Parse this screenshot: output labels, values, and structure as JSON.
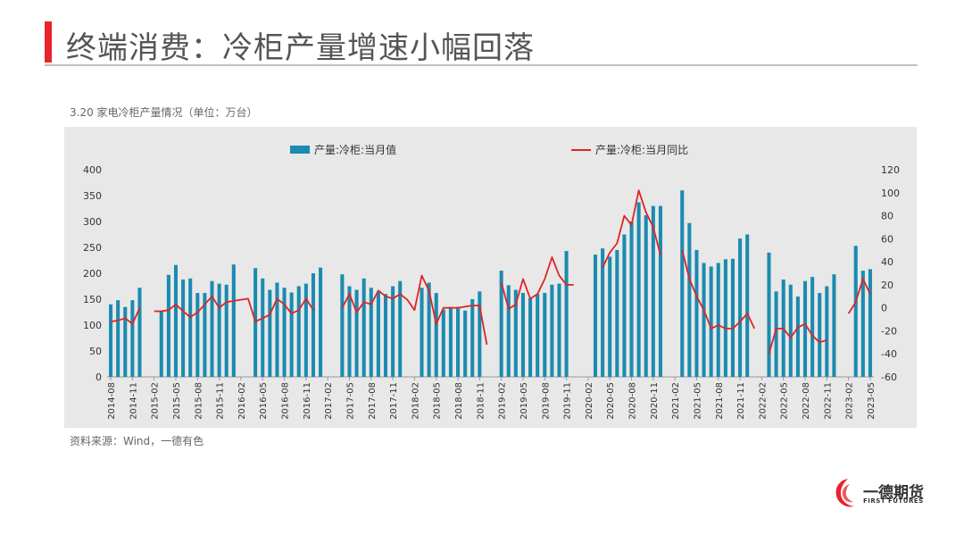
{
  "page": {
    "title": "终端消费：冷柜产量增速小幅回落",
    "chart_caption": "3.20 家电冷柜产量情况（单位：万台）",
    "source": "资料来源：Wind，一德有色",
    "logo_text": "一德期货",
    "logo_sub": "FIRST FUTURES"
  },
  "colors": {
    "accent": "#e8232a",
    "bar": "#1b8bb0",
    "line": "#e02424",
    "panel": "#e8e8e8"
  },
  "chart_data": {
    "type": "bar",
    "legend": [
      "产量:冷柜:当月值",
      "产量:冷柜:当月同比"
    ],
    "left_axis": {
      "min": 0,
      "max": 400,
      "ticks": [
        0,
        50,
        100,
        150,
        200,
        250,
        300,
        350,
        400
      ]
    },
    "right_axis": {
      "min": -60,
      "max": 120,
      "ticks": [
        -60,
        -40,
        -20,
        0,
        20,
        40,
        60,
        80,
        100,
        120
      ]
    },
    "x_tick_labels": [
      "2014-08",
      "2014-11",
      "2015-02",
      "2015-05",
      "2015-08",
      "2015-11",
      "2016-02",
      "2016-05",
      "2016-08",
      "2016-11",
      "2017-02",
      "2017-05",
      "2017-08",
      "2017-11",
      "2018-02",
      "2018-05",
      "2018-08",
      "2018-11",
      "2019-02",
      "2019-05",
      "2019-08",
      "2019-11",
      "2020-02",
      "2020-05",
      "2020-08",
      "2020-11",
      "2021-02",
      "2021-05",
      "2021-08",
      "2021-11",
      "2022-02",
      "2022-05",
      "2022-08",
      "2022-11",
      "2023-02",
      "2023-05"
    ],
    "months": [
      "2014-08",
      "2014-09",
      "2014-10",
      "2014-11",
      "2014-12",
      "2015-01",
      "2015-02",
      "2015-03",
      "2015-04",
      "2015-05",
      "2015-06",
      "2015-07",
      "2015-08",
      "2015-09",
      "2015-10",
      "2015-11",
      "2015-12",
      "2016-01",
      "2016-02",
      "2016-03",
      "2016-04",
      "2016-05",
      "2016-06",
      "2016-07",
      "2016-08",
      "2016-09",
      "2016-10",
      "2016-11",
      "2016-12",
      "2017-01",
      "2017-02",
      "2017-03",
      "2017-04",
      "2017-05",
      "2017-06",
      "2017-07",
      "2017-08",
      "2017-09",
      "2017-10",
      "2017-11",
      "2017-12",
      "2018-01",
      "2018-02",
      "2018-03",
      "2018-04",
      "2018-05",
      "2018-06",
      "2018-07",
      "2018-08",
      "2018-09",
      "2018-10",
      "2018-11",
      "2018-12",
      "2019-01",
      "2019-02",
      "2019-03",
      "2019-04",
      "2019-05",
      "2019-06",
      "2019-07",
      "2019-08",
      "2019-09",
      "2019-10",
      "2019-11",
      "2019-12",
      "2020-01",
      "2020-02",
      "2020-03",
      "2020-04",
      "2020-05",
      "2020-06",
      "2020-07",
      "2020-08",
      "2020-09",
      "2020-10",
      "2020-11",
      "2020-12",
      "2021-01",
      "2021-02",
      "2021-03",
      "2021-04",
      "2021-05",
      "2021-06",
      "2021-07",
      "2021-08",
      "2021-09",
      "2021-10",
      "2021-11",
      "2021-12",
      "2022-01",
      "2022-02",
      "2022-03",
      "2022-04",
      "2022-05",
      "2022-06",
      "2022-07",
      "2022-08",
      "2022-09",
      "2022-10",
      "2022-11",
      "2022-12",
      "2023-01",
      "2023-02",
      "2023-03",
      "2023-04",
      "2023-05"
    ],
    "series": [
      {
        "name": "产量:冷柜:当月值",
        "type": "bar",
        "axis": "left",
        "values": [
          140,
          148,
          135,
          148,
          172,
          null,
          null,
          128,
          197,
          216,
          188,
          190,
          162,
          162,
          185,
          180,
          178,
          217,
          null,
          null,
          210,
          190,
          168,
          182,
          172,
          163,
          175,
          180,
          200,
          211,
          null,
          null,
          198,
          175,
          168,
          190,
          172,
          165,
          160,
          175,
          185,
          null,
          null,
          172,
          182,
          162,
          130,
          135,
          135,
          128,
          150,
          165,
          null,
          null,
          205,
          177,
          168,
          162,
          152,
          160,
          162,
          178,
          180,
          243,
          null,
          null,
          null,
          236,
          248,
          232,
          245,
          275,
          300,
          337,
          312,
          330,
          330,
          null,
          null,
          360,
          297,
          245,
          220,
          213,
          220,
          227,
          228,
          267,
          275,
          null,
          null,
          240,
          165,
          188,
          178,
          155,
          185,
          193,
          162,
          175,
          198,
          null,
          null,
          253,
          205,
          208
        ]
      },
      {
        "name": "产量:冷柜:当月同比",
        "type": "line",
        "axis": "right",
        "values": [
          -12,
          -11,
          -9,
          -14,
          0,
          null,
          -3,
          -3,
          -2,
          3,
          -3,
          -8,
          -4,
          3,
          10,
          0,
          5,
          6,
          7,
          8,
          -12,
          -9,
          -6,
          8,
          3,
          -5,
          -2,
          8,
          -2,
          null,
          null,
          null,
          0,
          12,
          -4,
          5,
          3,
          15,
          10,
          8,
          12,
          7,
          -2,
          28,
          15,
          -14,
          0,
          0,
          0,
          1,
          2,
          2,
          -32,
          null,
          22,
          -1,
          3,
          25,
          8,
          12,
          25,
          44,
          28,
          20,
          20,
          null,
          20,
          null,
          35,
          48,
          56,
          80,
          72,
          102,
          83,
          70,
          46,
          null,
          null,
          50,
          25,
          10,
          -2,
          -18,
          -15,
          -18,
          -18,
          -12,
          -5,
          -18,
          null,
          -40,
          -18,
          -18,
          -26,
          -17,
          -14,
          -24,
          -30,
          -28,
          null,
          null,
          -5,
          5,
          25,
          12
        ]
      }
    ]
  }
}
